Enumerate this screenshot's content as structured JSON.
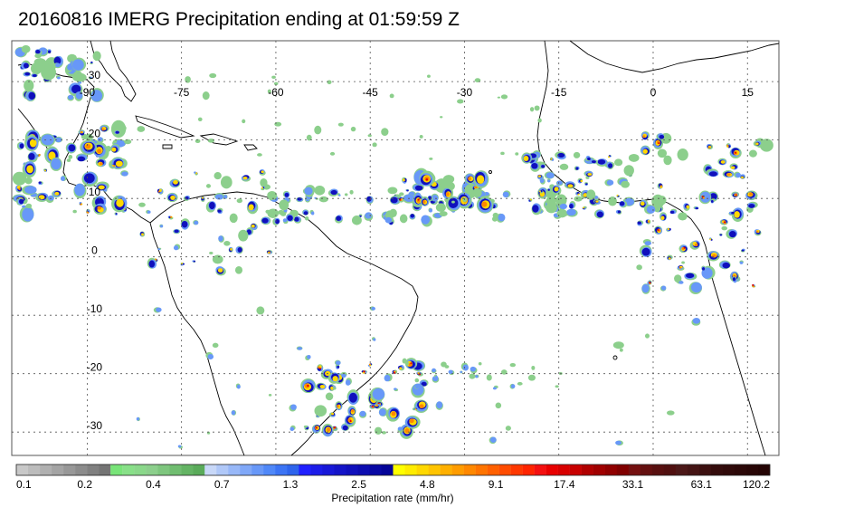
{
  "title": "20160816 IMERG Precipitation ending at 01:59:59 Z",
  "map": {
    "lon_range": [
      -102,
      20
    ],
    "lat_range": [
      37,
      -34
    ],
    "lon_ticks": [
      "-90",
      "-75",
      "-60",
      "-45",
      "-30",
      "-15",
      "0",
      "15"
    ],
    "lat_ticks": [
      "30",
      "20",
      "10",
      "0",
      "-10",
      "-20",
      "-30"
    ],
    "gridlines": "dotted"
  },
  "colorbar": {
    "title": "Precipitation rate (mm/hr)",
    "labels": [
      "0.1",
      "0.2",
      "0.4",
      "0.7",
      "1.3",
      "2.5",
      "4.8",
      "9.1",
      "17.4",
      "33.1",
      "63.1",
      "120.2"
    ],
    "colors": [
      "#c8c8c8",
      "#bcbcbc",
      "#b0b0b0",
      "#a4a4a4",
      "#989898",
      "#8c8c8c",
      "#808080",
      "#747474",
      "#78e478",
      "#88e088",
      "#8ad88a",
      "#8ccf8c",
      "#7ec67e",
      "#70bd70",
      "#64b464",
      "#5aab5a",
      "#c8d8f8",
      "#b0c8f8",
      "#98b8f8",
      "#80a8f8",
      "#6898f8",
      "#5088f8",
      "#3c74f4",
      "#2e64ec",
      "#2020ff",
      "#1c1ce8",
      "#1818d8",
      "#1414c8",
      "#1010bc",
      "#0c0cb0",
      "#0808a4",
      "#040498",
      "#ffff00",
      "#ffec00",
      "#ffd800",
      "#ffc400",
      "#ffb000",
      "#ff9c00",
      "#ff8800",
      "#ff7400",
      "#ff6000",
      "#ff4c00",
      "#ff3800",
      "#ff2400",
      "#f41010",
      "#e80000",
      "#d80000",
      "#c80000",
      "#b00000",
      "#a00000",
      "#900000",
      "#800000",
      "#741010",
      "#641010",
      "#581010",
      "#501010",
      "#4c1818",
      "#441414",
      "#3c1010",
      "#340c0c",
      "#300a0a",
      "#2c0808",
      "#280606",
      "#240404"
    ]
  }
}
